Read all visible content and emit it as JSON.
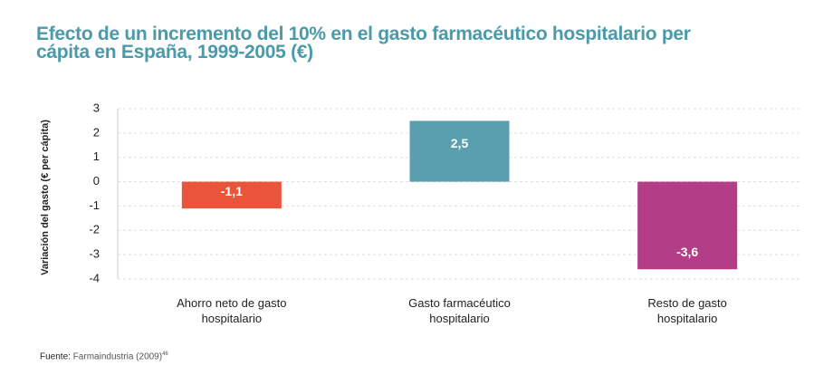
{
  "chart_data": {
    "type": "bar",
    "title": "Efecto de un incremento del 10% en el gasto farmacéutico hospitalario per cápita en España, 1999-2005 (€)",
    "ylabel": "Variación del gasto (€ per cápita)",
    "categories": [
      "Ahorro neto de gasto hospitalario",
      "Gasto farmacéutico hospitalario",
      "Resto de gasto hospitalario"
    ],
    "values": [
      -1.1,
      2.5,
      -3.6
    ],
    "value_labels": [
      "-1,1",
      "2,5",
      "-3,6"
    ],
    "colors": [
      "#e8553a",
      "#5a9fae",
      "#b43d87"
    ],
    "ylim": [
      -4,
      3
    ],
    "yticks": [
      -4,
      -3,
      -2,
      -1,
      0,
      1,
      2,
      3
    ],
    "grid": true,
    "source_label": "Fuente:",
    "source": "Farmaindustria (2009)",
    "source_ref": "46"
  }
}
